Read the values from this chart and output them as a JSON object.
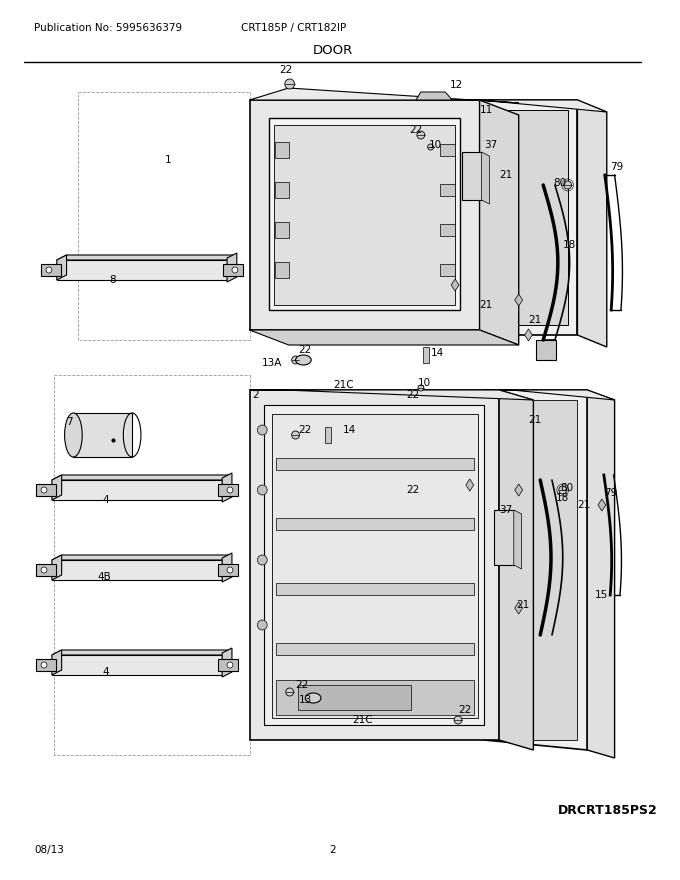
{
  "pub_no": "Publication No: 5995636379",
  "model": "CRT185P / CRT182IP",
  "section": "DOOR",
  "diagram_id": "DRCRT185PS2",
  "date": "08/13",
  "page": "2",
  "bg_color": "#ffffff",
  "line_color": "#000000",
  "gray_light": "#e8e8e8",
  "gray_mid": "#d0d0d0",
  "gray_dark": "#aaaaaa",
  "dashed_color": "#999999"
}
